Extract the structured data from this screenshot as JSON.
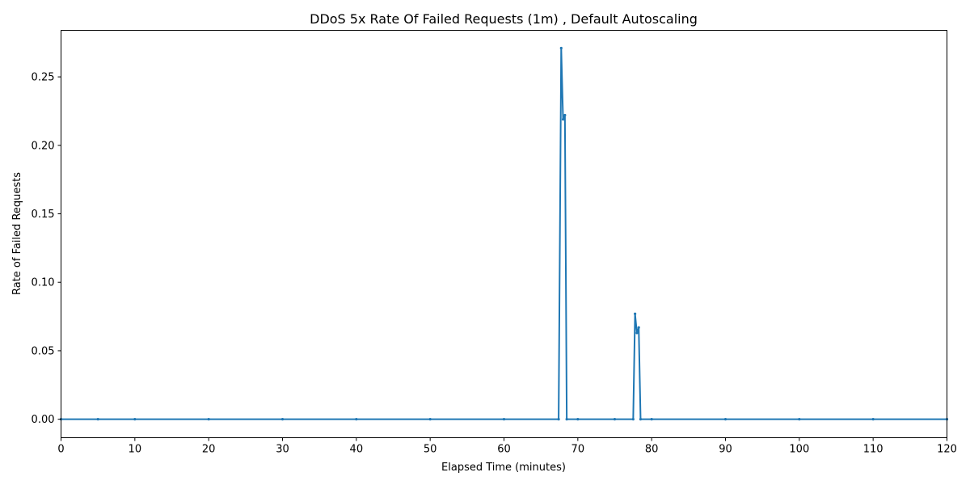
{
  "chart_data": {
    "type": "line",
    "title": "DDoS 5x Rate Of Failed Requests (1m) , Default Autoscaling",
    "xlabel": "Elapsed Time (minutes)",
    "ylabel": "Rate of Failed Requests",
    "xlim": [
      0,
      120
    ],
    "ylim": [
      -0.0135,
      0.284
    ],
    "xticks": [
      0,
      10,
      20,
      30,
      40,
      50,
      60,
      70,
      80,
      90,
      100,
      110,
      120
    ],
    "yticks": [
      0.0,
      0.05,
      0.1,
      0.15,
      0.2,
      0.25
    ],
    "xtick_labels": [
      "0",
      "10",
      "20",
      "30",
      "40",
      "50",
      "60",
      "70",
      "80",
      "90",
      "100",
      "110",
      "120"
    ],
    "ytick_labels": [
      "0.00",
      "0.05",
      "0.10",
      "0.15",
      "0.20",
      "0.25"
    ],
    "grid": false,
    "line_color": "#1f77b4",
    "series": [
      {
        "x": [
          0,
          5,
          10,
          20,
          30,
          40,
          50,
          60,
          67.4,
          67.75,
          68.0,
          68.25,
          68.5,
          70,
          75,
          77.5,
          77.75,
          78.0,
          78.25,
          78.5,
          80,
          90,
          100,
          110,
          120
        ],
        "y": [
          0,
          0,
          0,
          0,
          0,
          0,
          0,
          0,
          0,
          0.271,
          0.219,
          0.222,
          0,
          0,
          0,
          0,
          0.077,
          0.063,
          0.067,
          0,
          0,
          0,
          0,
          0,
          0
        ]
      }
    ]
  }
}
